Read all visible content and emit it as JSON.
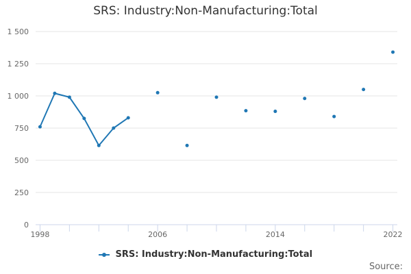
{
  "colors": {
    "series": "#1f77b4",
    "grid": "#e6e6e6",
    "axis": "#ccd6eb",
    "text": "#666666"
  },
  "source_label": "Source:",
  "chart_data": {
    "type": "line",
    "title": "SRS: Industry:Non-Manufacturing:Total",
    "xlabel": "",
    "ylabel": "",
    "xlim": [
      1997.7,
      2022.3
    ],
    "ylim": [
      0,
      1500
    ],
    "y_ticks": [
      0,
      250,
      500,
      750,
      1000,
      1250,
      1500
    ],
    "y_tick_labels": [
      "0",
      "250",
      "500",
      "750",
      "1 000",
      "1 250",
      "1 500"
    ],
    "x_ticks": [
      1998,
      2006,
      2014,
      2022
    ],
    "x_tick_labels": [
      "1998",
      "2006",
      "2014",
      "2022"
    ],
    "x_minor_ticks": [
      1998,
      2000,
      2002,
      2004,
      2006,
      2008,
      2010,
      2012,
      2014,
      2016,
      2018,
      2020,
      2022
    ],
    "legend_position": "bottom-center",
    "series": [
      {
        "name": "SRS: Industry:Non-Manufacturing:Total",
        "x": [
          1998,
          1999,
          2000,
          2001,
          2002,
          2003,
          2004,
          2006,
          2008,
          2010,
          2012,
          2014,
          2016,
          2018,
          2020,
          2022
        ],
        "values": [
          760,
          1020,
          990,
          825,
          615,
          750,
          830,
          1025,
          615,
          990,
          885,
          880,
          980,
          840,
          1050,
          1340
        ]
      }
    ]
  }
}
